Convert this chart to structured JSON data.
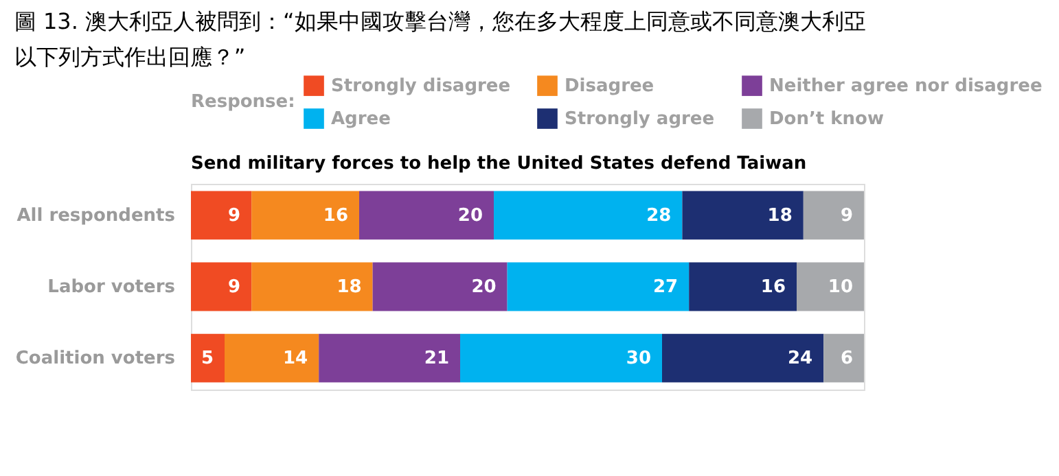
{
  "chart_data": {
    "type": "bar",
    "orientation": "horizontal",
    "stacked": true,
    "data_labels": true,
    "legend": "top",
    "grid": false,
    "tick_labels": "y",
    "title": "圖 13. 澳大利亞人被問到：“如果中國攻擊台灣，您在多大程度上同意或不同意澳大利亞以下列方式作出回應？”",
    "subtitle": "Send military forces to help the United States defend Taiwan",
    "legend_title": "Response:",
    "categories": [
      "All respondents",
      "Labor voters",
      "Coalition voters"
    ],
    "series": [
      {
        "name": "Strongly disagree",
        "color": "#f04b23",
        "values": [
          9,
          9,
          5
        ]
      },
      {
        "name": "Disagree",
        "color": "#f5891f",
        "values": [
          16,
          18,
          14
        ]
      },
      {
        "name": "Neither agree nor disagree",
        "color": "#7d3f98",
        "values": [
          20,
          20,
          21
        ]
      },
      {
        "name": "Agree",
        "color": "#00b2ef",
        "values": [
          28,
          27,
          30
        ]
      },
      {
        "name": "Strongly agree",
        "color": "#1d2f72",
        "values": [
          18,
          16,
          24
        ]
      },
      {
        "name": "Don’t know",
        "color": "#a7a9ac",
        "values": [
          9,
          10,
          6
        ]
      }
    ]
  }
}
